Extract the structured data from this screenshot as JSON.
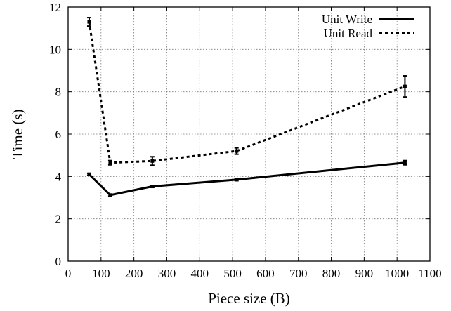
{
  "chart_data": {
    "type": "line",
    "xlabel": "Piece size (B)",
    "ylabel": "Time (s)",
    "xlim": [
      0,
      1100
    ],
    "ylim": [
      0,
      12
    ],
    "xticks": [
      0,
      100,
      200,
      300,
      400,
      500,
      600,
      700,
      800,
      900,
      1000,
      1100
    ],
    "yticks": [
      0,
      2,
      4,
      6,
      8,
      10,
      12
    ],
    "grid": true,
    "legend_position": "top-right",
    "series": [
      {
        "name": "Unit Write",
        "style": "solid",
        "color": "#000000",
        "x": [
          64,
          128,
          256,
          512,
          1024
        ],
        "y": [
          4.1,
          3.12,
          3.53,
          3.85,
          4.65
        ],
        "err": [
          0.05,
          0.05,
          0.05,
          0.05,
          0.1
        ]
      },
      {
        "name": "Unit Read",
        "style": "dotted",
        "color": "#000000",
        "x": [
          64,
          128,
          256,
          512,
          1024
        ],
        "y": [
          11.3,
          4.65,
          4.73,
          5.2,
          8.25
        ],
        "err": [
          0.2,
          0.1,
          0.2,
          0.15,
          0.5
        ]
      }
    ]
  }
}
